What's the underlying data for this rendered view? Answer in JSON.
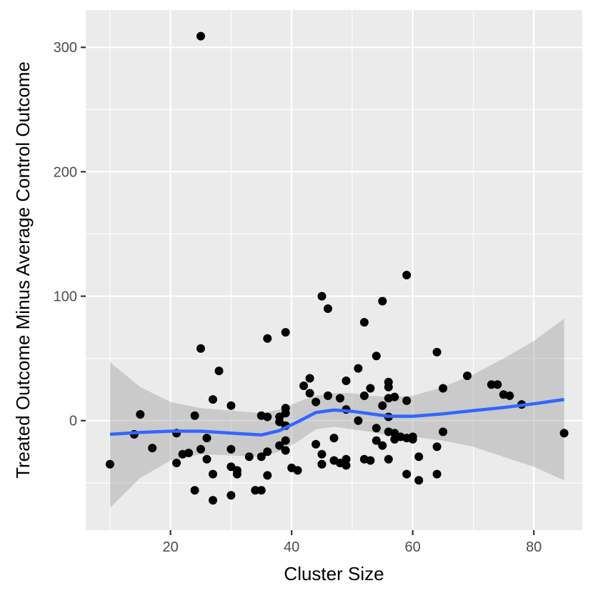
{
  "chart_data": {
    "type": "scatter",
    "title": "",
    "xlabel": "Cluster Size",
    "ylabel": "Treated Outcome Minus Average Control Outcome",
    "xlim": [
      6,
      88
    ],
    "ylim": [
      -88,
      330
    ],
    "x_ticks": [
      20,
      40,
      60,
      80
    ],
    "y_ticks": [
      0,
      100,
      200,
      300
    ],
    "grid": true,
    "legend": "none",
    "colors": {
      "panel": "#ebebeb",
      "grid": "#ffffff",
      "points": "#000000",
      "smooth_line": "#3366ff",
      "confidence_band": "#999999"
    },
    "points": [
      [
        10,
        -35
      ],
      [
        14,
        -11
      ],
      [
        15,
        5
      ],
      [
        17,
        -22
      ],
      [
        21,
        -10
      ],
      [
        21,
        -34
      ],
      [
        22,
        -27
      ],
      [
        23,
        -26
      ],
      [
        24,
        4
      ],
      [
        24,
        -56
      ],
      [
        25,
        309
      ],
      [
        25,
        58
      ],
      [
        25,
        -23
      ],
      [
        26,
        -14
      ],
      [
        26,
        -31
      ],
      [
        27,
        17
      ],
      [
        27,
        -43
      ],
      [
        27,
        -64
      ],
      [
        28,
        40
      ],
      [
        30,
        12
      ],
      [
        30,
        -23
      ],
      [
        30,
        -37
      ],
      [
        30,
        -60
      ],
      [
        31,
        -40
      ],
      [
        31,
        -43
      ],
      [
        33,
        -29
      ],
      [
        34,
        -56
      ],
      [
        35,
        4
      ],
      [
        35,
        -29
      ],
      [
        35,
        -56
      ],
      [
        36,
        66
      ],
      [
        36,
        3
      ],
      [
        36,
        -25
      ],
      [
        36,
        -44
      ],
      [
        38,
        3
      ],
      [
        38,
        -1
      ],
      [
        38,
        -20
      ],
      [
        39,
        71
      ],
      [
        39,
        10
      ],
      [
        39,
        6
      ],
      [
        39,
        -4
      ],
      [
        39,
        -16
      ],
      [
        39,
        -24
      ],
      [
        40,
        -38
      ],
      [
        41,
        -40
      ],
      [
        42,
        28
      ],
      [
        43,
        34
      ],
      [
        43,
        22
      ],
      [
        44,
        15
      ],
      [
        44,
        -19
      ],
      [
        45,
        100
      ],
      [
        45,
        -27
      ],
      [
        45,
        -35
      ],
      [
        45,
        -35
      ],
      [
        46,
        90
      ],
      [
        46,
        20
      ],
      [
        47,
        -14
      ],
      [
        47,
        -32
      ],
      [
        48,
        18
      ],
      [
        48,
        -34
      ],
      [
        49,
        32
      ],
      [
        49,
        9
      ],
      [
        49,
        -31
      ],
      [
        49,
        -36
      ],
      [
        51,
        42
      ],
      [
        51,
        0
      ],
      [
        52,
        79
      ],
      [
        52,
        20
      ],
      [
        52,
        -31
      ],
      [
        53,
        26
      ],
      [
        53,
        -32
      ],
      [
        54,
        52
      ],
      [
        54,
        -6
      ],
      [
        54,
        -16
      ],
      [
        55,
        96
      ],
      [
        55,
        12
      ],
      [
        55,
        -20
      ],
      [
        56,
        31
      ],
      [
        56,
        27
      ],
      [
        56,
        18
      ],
      [
        56,
        3
      ],
      [
        56,
        -9
      ],
      [
        56,
        -31
      ],
      [
        57,
        19
      ],
      [
        57,
        -10
      ],
      [
        57,
        -15
      ],
      [
        58,
        -13
      ],
      [
        59,
        117
      ],
      [
        59,
        16
      ],
      [
        59,
        -14
      ],
      [
        59,
        -43
      ],
      [
        60,
        -13
      ],
      [
        60,
        -15
      ],
      [
        61,
        -29
      ],
      [
        61,
        -48
      ],
      [
        64,
        55
      ],
      [
        64,
        -21
      ],
      [
        64,
        -43
      ],
      [
        65,
        26
      ],
      [
        65,
        -9
      ],
      [
        69,
        36
      ],
      [
        73,
        29
      ],
      [
        74,
        29
      ],
      [
        75,
        21
      ],
      [
        76,
        20
      ],
      [
        78,
        13
      ],
      [
        85,
        -10
      ]
    ],
    "smooth": {
      "method": "loess",
      "x": [
        10,
        15,
        20,
        25,
        30,
        35,
        38,
        41,
        44,
        47,
        50,
        53,
        56,
        60,
        65,
        70,
        75,
        80,
        85
      ],
      "y": [
        -11,
        -9.5,
        -8.5,
        -8.5,
        -10,
        -11.5,
        -8,
        -1,
        6.5,
        8.5,
        7.5,
        5.5,
        3.5,
        3.5,
        5.5,
        8,
        10.5,
        13.5,
        17
      ],
      "upper": [
        47,
        27,
        15,
        10,
        8,
        6,
        9,
        15,
        20,
        22,
        22,
        20,
        19,
        20,
        27,
        37,
        50,
        64,
        82
      ],
      "lower": [
        -70,
        -46,
        -32,
        -27,
        -28,
        -29,
        -25,
        -17,
        -7,
        -5,
        -7,
        -9,
        -12,
        -13,
        -16,
        -21,
        -29,
        -37,
        -48
      ]
    }
  }
}
